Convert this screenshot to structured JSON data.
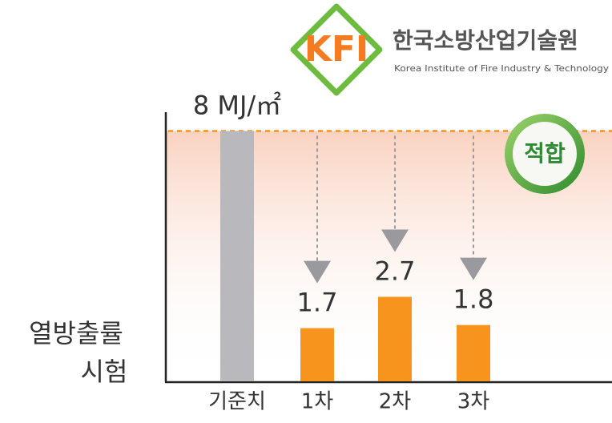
{
  "chart_data": {
    "type": "bar",
    "logo": "KFI",
    "organization": "한국소방산업기술원",
    "organization_en": "Korea Institute of Fire Industry & Technology",
    "ylabel": [
      "열방출률",
      "시험"
    ],
    "badge": "적합",
    "categories": [
      "기준치",
      "1차",
      "2차",
      "3차"
    ],
    "values": [
      8,
      1.7,
      2.7,
      1.8
    ],
    "value_labels": [
      "8 MJ/㎡",
      "1.7",
      "2.7",
      "1.8"
    ],
    "colors": [
      "#b9b9bd",
      "#f7941d",
      "#f7941d",
      "#f7941d"
    ],
    "ylim": [
      0,
      8.6
    ]
  }
}
